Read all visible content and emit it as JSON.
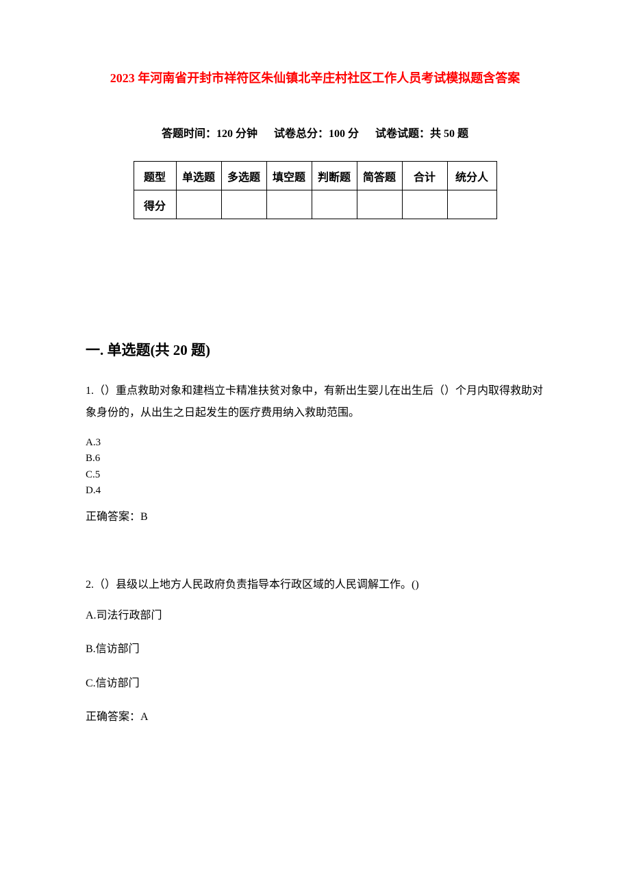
{
  "title": "2023 年河南省开封市祥符区朱仙镇北辛庄村社区工作人员考试模拟题含答案",
  "meta": {
    "time": "答题时间：120 分钟",
    "total": "试卷总分：100 分",
    "count": "试卷试题：共 50 题"
  },
  "table": {
    "row1": [
      "题型",
      "单选题",
      "多选题",
      "填空题",
      "判断题",
      "简答题",
      "合计",
      "统分人"
    ],
    "row2": [
      "得分",
      "",
      "",
      "",
      "",
      "",
      "",
      ""
    ]
  },
  "section_heading": "一. 单选题(共 20 题)",
  "q1": {
    "text": "1.（）重点救助对象和建档立卡精准扶贫对象中，有新出生婴儿在出生后（）个月内取得救助对象身份的，从出生之日起发生的医疗费用纳入救助范围。",
    "opt_a": "A.3",
    "opt_b": "B.6",
    "opt_c": "C.5",
    "opt_d": "D.4",
    "answer": "正确答案：B"
  },
  "q2": {
    "text": "2.（）县级以上地方人民政府负责指导本行政区域的人民调解工作。()",
    "opt_a": "A.司法行政部门",
    "opt_b": "B.信访部门",
    "opt_c": "C.信访部门",
    "answer": "正确答案：A"
  },
  "colors": {
    "title_color": "#ff0000",
    "text_color": "#000000",
    "background": "#ffffff",
    "border_color": "#000000"
  }
}
